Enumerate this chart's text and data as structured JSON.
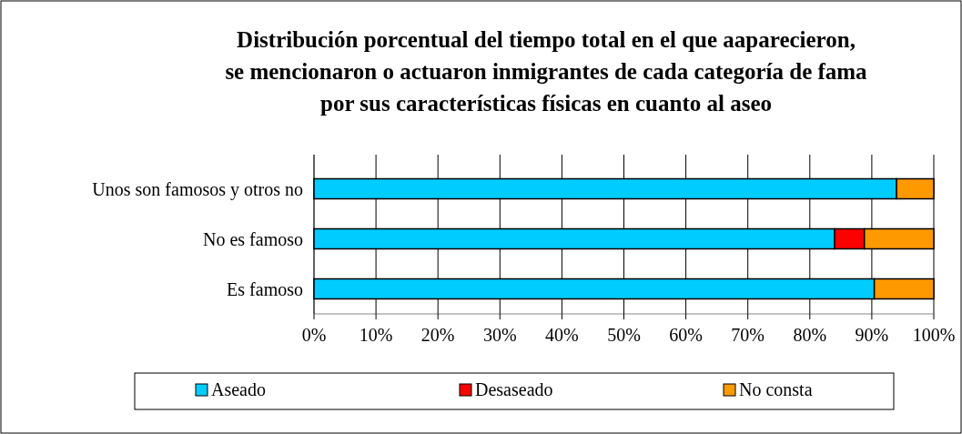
{
  "chart_data": {
    "type": "bar",
    "orientation": "horizontal",
    "stacked": true,
    "title": "Distribución porcentual del tiempo total en el que aaparecieron, se mencionaron o actuaron inmigrantes de cada categoría de fama por sus características físicas en cuanto al aseo",
    "categories": [
      "Unos son famosos y otros no",
      "No es famoso",
      "Es famoso"
    ],
    "series": [
      {
        "name": "Aseado",
        "color": "#00ccff",
        "values": [
          94,
          84,
          90.4
        ]
      },
      {
        "name": "Desaseado",
        "color": "#ff0000",
        "values": [
          0,
          4.8,
          0
        ]
      },
      {
        "name": "No consta",
        "color": "#ff9900",
        "values": [
          6,
          11.2,
          9.6
        ]
      }
    ],
    "xlim": [
      0,
      100
    ],
    "xticks": [
      {
        "value": 0,
        "label": "0%"
      },
      {
        "value": 10,
        "label": "10%"
      },
      {
        "value": 20,
        "label": "20%"
      },
      {
        "value": 30,
        "label": "30%"
      },
      {
        "value": 40,
        "label": "40%"
      },
      {
        "value": 50,
        "label": "50%"
      },
      {
        "value": 60,
        "label": "60%"
      },
      {
        "value": 70,
        "label": "70%"
      },
      {
        "value": 80,
        "label": "80%"
      },
      {
        "value": 90,
        "label": "90%"
      },
      {
        "value": 100,
        "label": "100%"
      }
    ],
    "grid": "x",
    "legend": "bottom"
  }
}
